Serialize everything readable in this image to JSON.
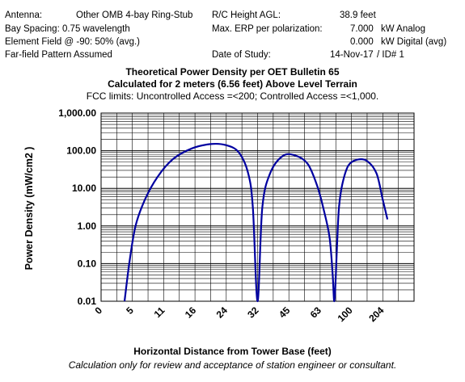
{
  "header": {
    "antenna_label": "Antenna:",
    "antenna_value": "Other OMB 4-bay Ring-Stub",
    "bay_spacing": "Bay Spacing:  0.75 wavelength",
    "element_field": "Element Field @ -90:  50% (avg.)",
    "pattern": "Far-field Pattern Assumed",
    "height_label": "R/C Height AGL:",
    "height_value": "38.9 feet",
    "erp_label": "Max. ERP per polarization:",
    "erp_analog_value": "7.000",
    "erp_analog_unit": "kW Analog",
    "erp_digital_value": "0.000",
    "erp_digital_unit": "kW Digital (avg)",
    "date_label": "Date of Study:",
    "date_value": "14-Nov-17",
    "id_value": "/ ID# 1"
  },
  "chart_data": {
    "type": "line",
    "title": "Theoretical Power Density per OET Bulletin 65",
    "subtitle": "Calculated for 2 meters (6.56 feet) Above Level Terrain",
    "limits_note": "FCC limits: Uncontrolled Access =<200; Controlled Access =<1,000.",
    "xlabel": "Horizontal Distance from Tower Base (feet)",
    "ylabel": "Power Density (mW/cm2 )",
    "y_scale": "log",
    "ylim": [
      0.01,
      1000
    ],
    "y_ticks": [
      "1,000.00",
      "100.00",
      "10.00",
      "1.00",
      "0.10",
      "0.01"
    ],
    "x_ticks": [
      "0",
      "5",
      "11",
      "16",
      "24",
      "32",
      "45",
      "63",
      "100",
      "204"
    ],
    "grid": true,
    "line_color": "#0000a0",
    "series": [
      {
        "x_index": [
          0.75,
          0.9,
          1.1,
          1.4,
          1.8,
          2.3,
          2.9,
          3.5,
          4.0,
          4.4,
          4.7,
          4.85,
          5.0,
          5.15,
          5.4,
          5.8,
          6.2,
          6.6,
          6.9,
          7.1,
          7.3,
          7.4,
          7.45,
          7.5,
          7.55,
          7.6,
          7.7,
          7.9,
          8.2,
          8.5,
          8.8,
          9.0,
          9.15
        ],
        "values": [
          0.01,
          0.1,
          1.0,
          5.0,
          20,
          60,
          115,
          150,
          140,
          90,
          25,
          3,
          0.01,
          3,
          25,
          72,
          75,
          45,
          12,
          3,
          0.5,
          0.05,
          0.01,
          0.05,
          0.5,
          3,
          12,
          40,
          58,
          53,
          25,
          5,
          1.5
        ]
      }
    ]
  },
  "footer": "Calculation only for review and acceptance of station engineer or consultant."
}
